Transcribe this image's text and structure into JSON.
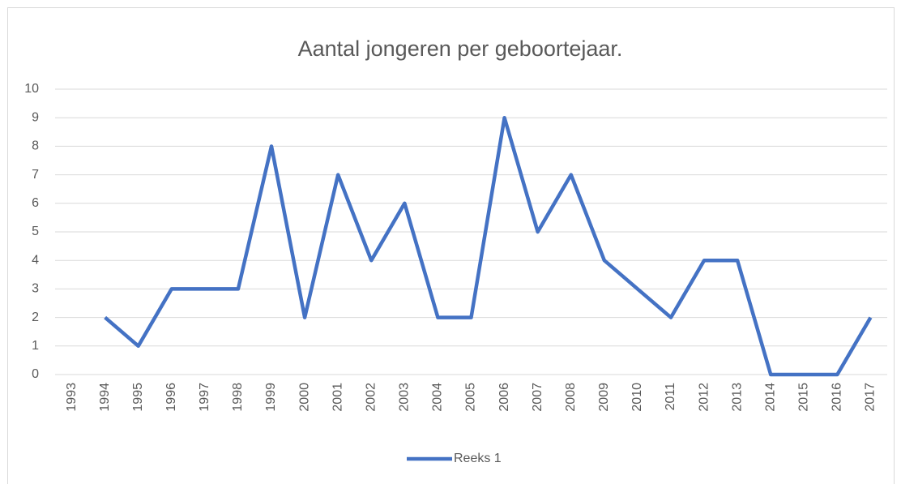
{
  "chart_data": {
    "type": "line",
    "title": "Aantal jongeren per geboortejaar.",
    "categories": [
      "1993",
      "1994",
      "1995",
      "1996",
      "1997",
      "1998",
      "1999",
      "2000",
      "2001",
      "2002",
      "2003",
      "2004",
      "2005",
      "2006",
      "2007",
      "2008",
      "2009",
      "2010",
      "2011",
      "2012",
      "2013",
      "2014",
      "2015",
      "2016",
      "2017"
    ],
    "series": [
      {
        "name": "Reeks 1",
        "color": "#4472c4",
        "values": [
          null,
          2,
          1,
          3,
          3,
          3,
          8,
          2,
          7,
          4,
          6,
          2,
          2,
          9,
          5,
          7,
          4,
          3,
          2,
          4,
          4,
          0,
          0,
          0,
          2
        ]
      }
    ],
    "ylim": [
      0,
      10
    ],
    "yticks": [
      0,
      1,
      2,
      3,
      4,
      5,
      6,
      7,
      8,
      9,
      10
    ],
    "grid": true,
    "legend": "bottom"
  }
}
